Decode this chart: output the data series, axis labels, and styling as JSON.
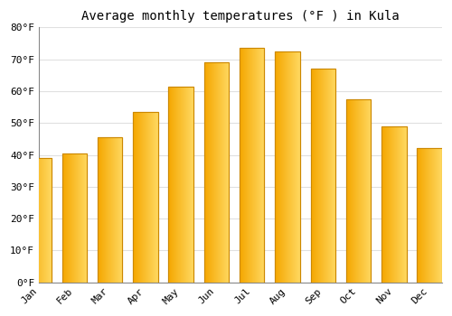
{
  "title": "Average monthly temperatures (°F ) in Kula",
  "months": [
    "Jan",
    "Feb",
    "Mar",
    "Apr",
    "May",
    "Jun",
    "Jul",
    "Aug",
    "Sep",
    "Oct",
    "Nov",
    "Dec"
  ],
  "values": [
    39,
    40.5,
    45.5,
    53.5,
    61.5,
    69,
    73.5,
    72.5,
    67,
    57.5,
    49,
    42
  ],
  "bar_color_left": "#F5A700",
  "bar_color_right": "#FFD860",
  "bar_edge_color": "#CC8800",
  "background_color": "#FFFFFF",
  "plot_bg_color": "#FFFFFF",
  "grid_color": "#E0E0E0",
  "ylim": [
    0,
    80
  ],
  "yticks": [
    0,
    10,
    20,
    30,
    40,
    50,
    60,
    70,
    80
  ],
  "ytick_labels": [
    "0°F",
    "10°F",
    "20°F",
    "30°F",
    "40°F",
    "50°F",
    "60°F",
    "70°F",
    "80°F"
  ],
  "title_fontsize": 10,
  "tick_fontsize": 8,
  "font_family": "monospace"
}
